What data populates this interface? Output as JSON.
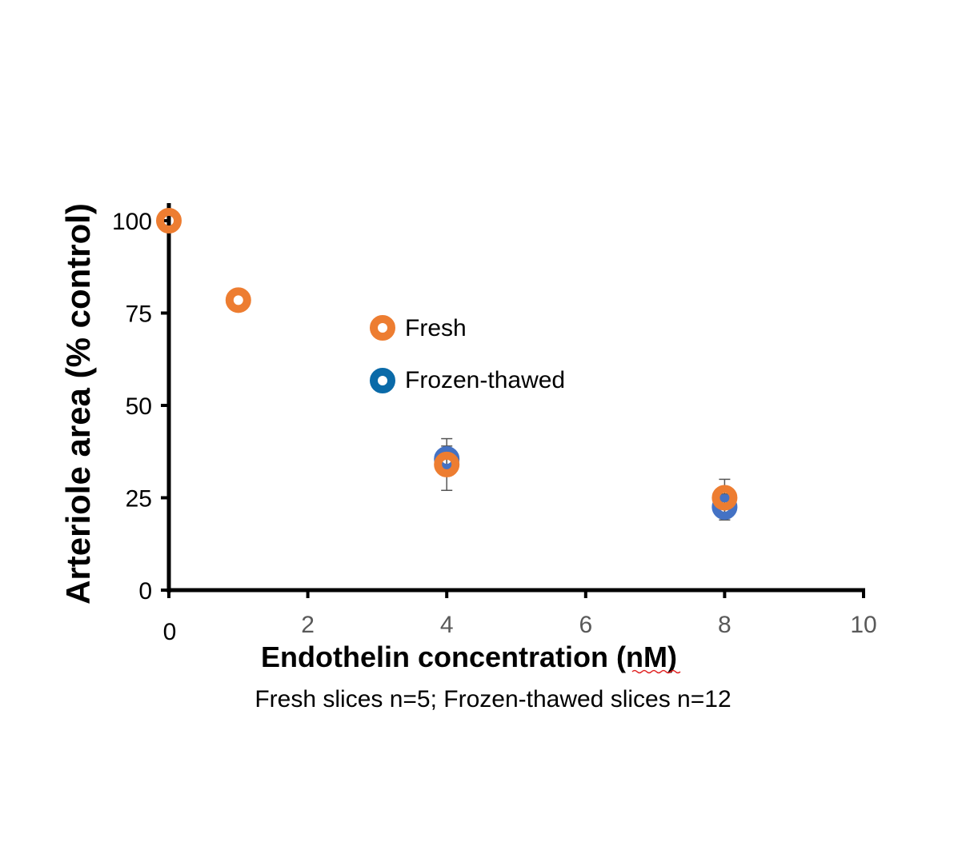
{
  "chart_data": {
    "type": "scatter",
    "xlabel": "Endothelin concentration (nM)",
    "ylabel": "Arteriole area (% control)",
    "note": "Fresh slices n=5; Frozen-thawed slices n=12",
    "xlim": [
      0,
      10
    ],
    "ylim": [
      0,
      100
    ],
    "x_ticks": [
      "0",
      "2",
      "4",
      "6",
      "8",
      "10"
    ],
    "y_ticks": [
      "0",
      "25",
      "50",
      "75",
      "100"
    ],
    "grid": false,
    "legend_position": "center",
    "series": [
      {
        "name": "Fresh",
        "color": "#ED7D31",
        "points": [
          {
            "x": 0,
            "y": 100,
            "err": 0
          },
          {
            "x": 1,
            "y": 78.5,
            "err": 0
          },
          {
            "x": 4,
            "y": 34,
            "err": 7
          },
          {
            "x": 8,
            "y": 25,
            "err": 5
          }
        ]
      },
      {
        "name": "Frozen-thawed",
        "color": "#4472C4",
        "legend_color": "#0A6AA8",
        "points": [
          {
            "x": 4,
            "y": 35.5,
            "err": 3.5
          },
          {
            "x": 8,
            "y": 22.5,
            "err": 3.5
          }
        ]
      }
    ]
  }
}
